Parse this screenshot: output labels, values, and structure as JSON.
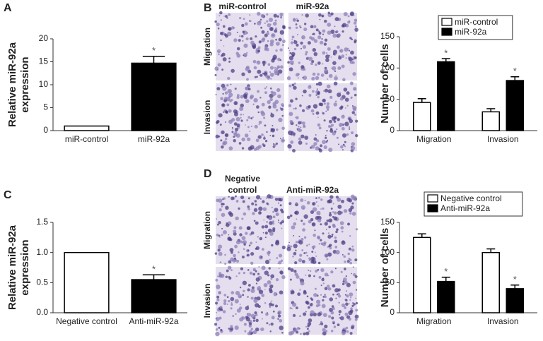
{
  "panels": [
    "A",
    "B",
    "C",
    "D"
  ],
  "micrographs": [
    {
      "column_labels": [
        [
          "miR-control"
        ],
        [
          "miR-92a"
        ]
      ],
      "row_labels": [
        "Migration",
        "Invasion"
      ]
    },
    {
      "column_labels": [
        [
          "Negative",
          "control"
        ],
        [
          "Anti-miR-92a"
        ]
      ],
      "row_labels": [
        "Migration",
        "Invasion"
      ]
    }
  ],
  "chart_data": [
    {
      "type": "bar",
      "ylabel": [
        "Relative miR-92a",
        "expression"
      ],
      "categories": [
        "miR-control",
        "miR-92a"
      ],
      "values": [
        1,
        14.7
      ],
      "errors": [
        null,
        1.5
      ],
      "annotations": [
        null,
        "*"
      ],
      "colors": [
        "#ffffff",
        "#000000"
      ],
      "ylim": [
        0,
        20
      ],
      "yticks": [
        0,
        5,
        10,
        15,
        20
      ]
    },
    {
      "type": "bar",
      "ylabel": [
        "Number of cells"
      ],
      "categories": [
        "Migration",
        "Invasion"
      ],
      "series": [
        {
          "name": "miR-control",
          "color": "#ffffff",
          "values": [
            45,
            30
          ],
          "errors": [
            6,
            5
          ],
          "annotations": [
            null,
            null
          ]
        },
        {
          "name": "miR-92a",
          "color": "#000000",
          "values": [
            110,
            80
          ],
          "errors": [
            5,
            6
          ],
          "annotations": [
            "*",
            "*"
          ]
        }
      ],
      "legend": "upper right",
      "ylim": [
        0,
        150
      ],
      "yticks": [
        0,
        50,
        100,
        150
      ]
    },
    {
      "type": "bar",
      "ylabel": [
        "Relative miR-92a",
        "expression"
      ],
      "categories": [
        "Negative control",
        "Anti-miR-92a"
      ],
      "values": [
        1.0,
        0.55
      ],
      "errors": [
        null,
        0.08
      ],
      "annotations": [
        null,
        "*"
      ],
      "colors": [
        "#ffffff",
        "#000000"
      ],
      "ylim": [
        0,
        1.5
      ],
      "yticks": [
        {
          "value": 0,
          "label": "0.0"
        },
        0.5,
        {
          "value": 1,
          "label": "1.0"
        },
        1.5
      ]
    },
    {
      "type": "bar",
      "ylabel": [
        "Number of cells"
      ],
      "categories": [
        "Migration",
        "Invasion"
      ],
      "series": [
        {
          "name": "Negative control",
          "color": "#ffffff",
          "values": [
            125,
            100
          ],
          "errors": [
            6,
            6
          ],
          "annotations": [
            null,
            null
          ]
        },
        {
          "name": "Anti-miR-92a",
          "color": "#000000",
          "values": [
            52,
            40
          ],
          "errors": [
            7,
            6
          ],
          "annotations": [
            "*",
            "*"
          ]
        }
      ],
      "legend": "upper right",
      "ylim": [
        0,
        150
      ],
      "yticks": [
        0,
        50,
        100,
        150
      ]
    }
  ]
}
